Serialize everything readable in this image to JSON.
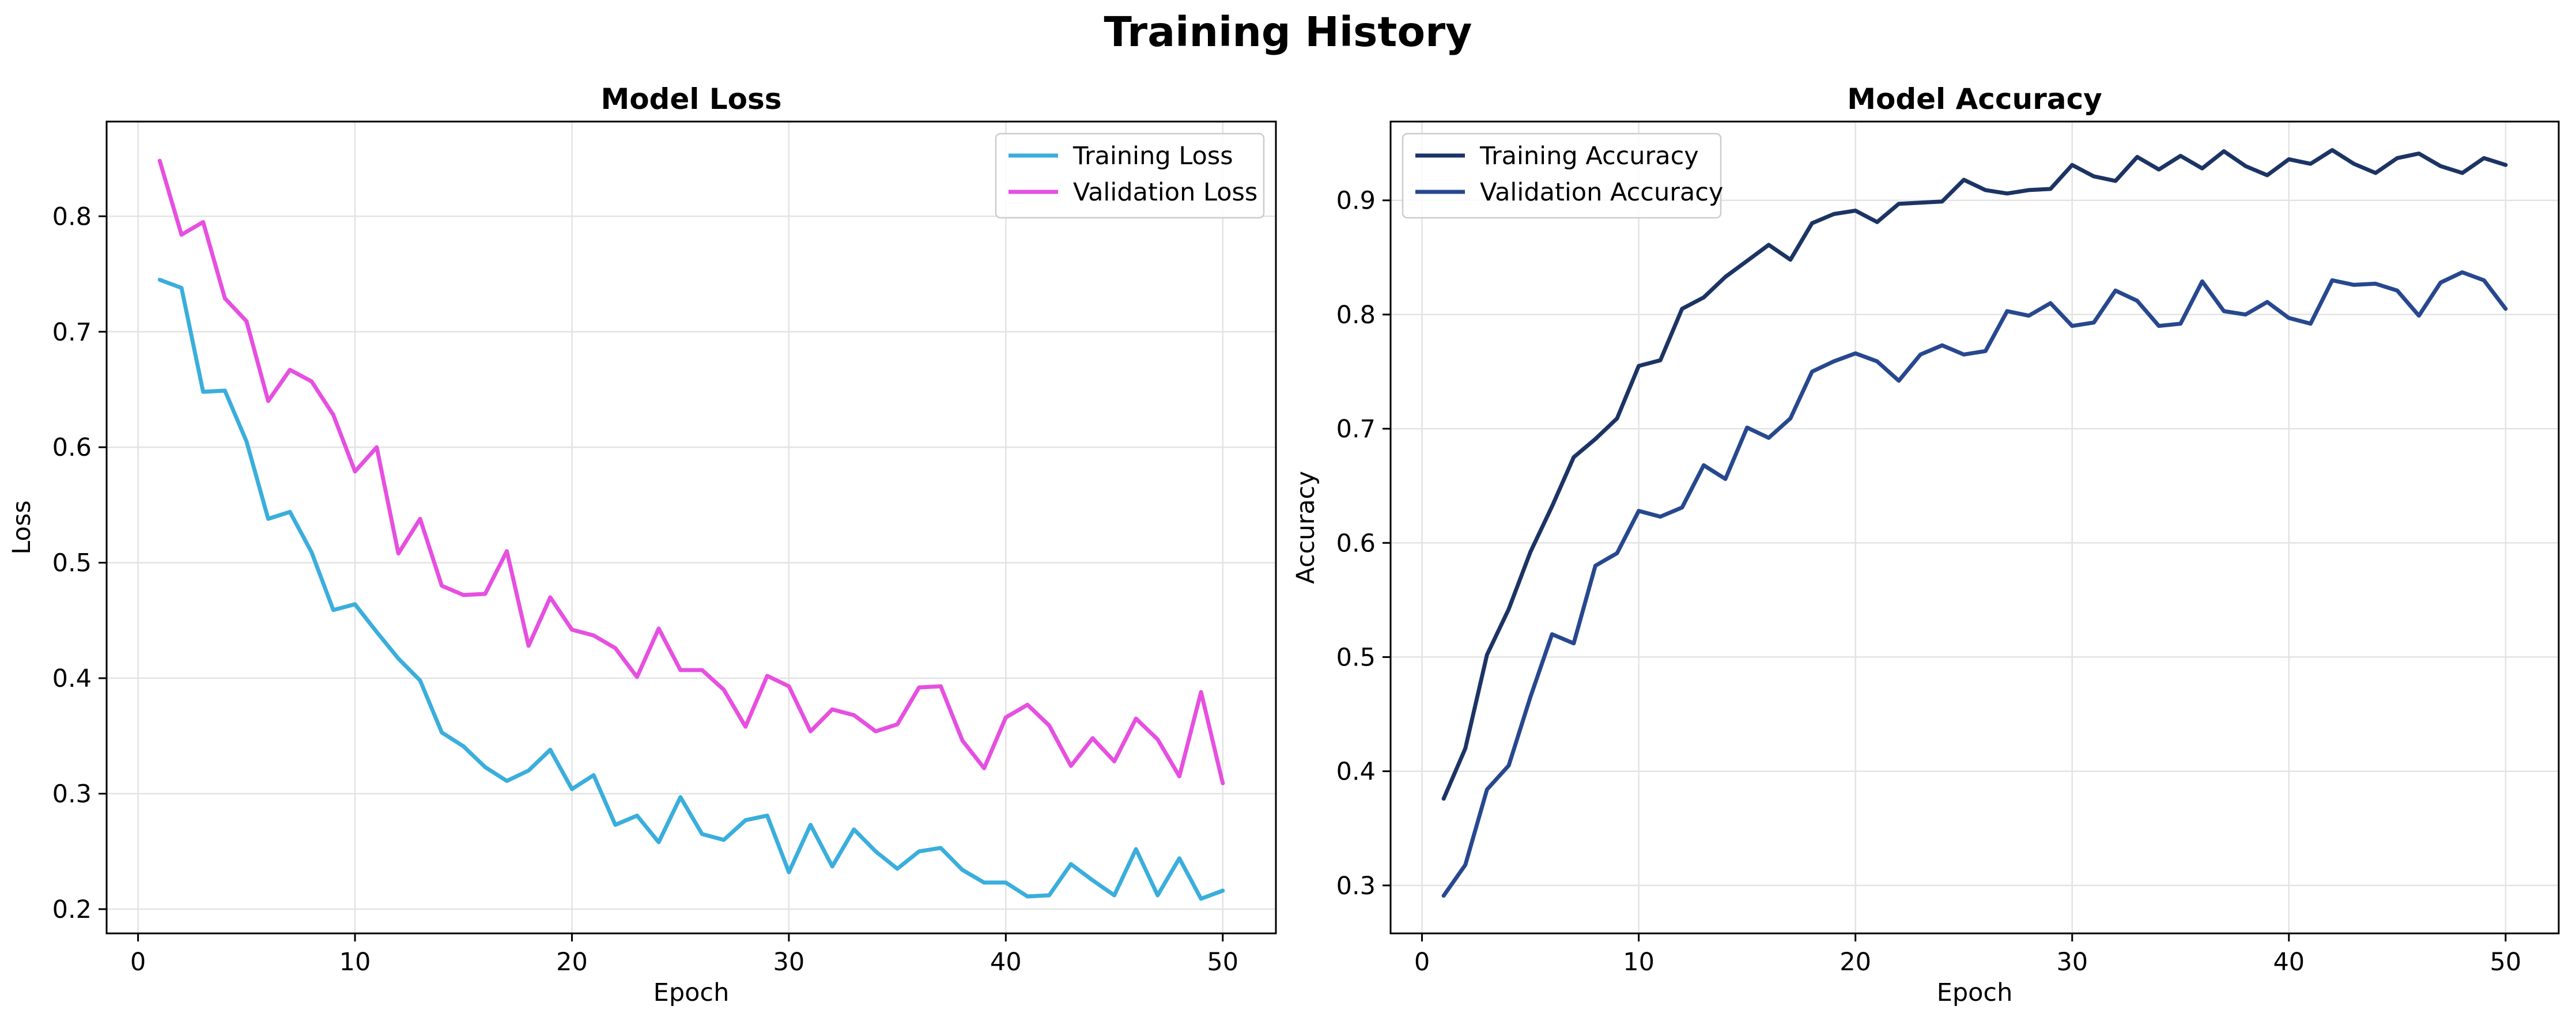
{
  "figure": {
    "title": "Training History"
  },
  "chart_data": [
    {
      "type": "line",
      "title": "Model Loss",
      "xlabel": "Epoch",
      "ylabel": "Loss",
      "xlim": [
        -1.45,
        52.45
      ],
      "ylim": [
        0.179,
        0.882
      ],
      "xticks": [
        0,
        10,
        20,
        30,
        40,
        50
      ],
      "yticks": [
        0.2,
        0.3,
        0.4,
        0.5,
        0.6,
        0.7,
        0.8
      ],
      "grid": true,
      "legend": "top-right",
      "x": [
        1,
        2,
        3,
        4,
        5,
        6,
        7,
        8,
        9,
        10,
        11,
        12,
        13,
        14,
        15,
        16,
        17,
        18,
        19,
        20,
        21,
        22,
        23,
        24,
        25,
        26,
        27,
        28,
        29,
        30,
        31,
        32,
        33,
        34,
        35,
        36,
        37,
        38,
        39,
        40,
        41,
        42,
        43,
        44,
        45,
        46,
        47,
        48,
        49,
        50
      ],
      "series": [
        {
          "name": "Training Loss",
          "color": "#3aaedc",
          "values": [
            0.745,
            0.738,
            0.648,
            0.649,
            0.605,
            0.538,
            0.544,
            0.509,
            0.459,
            0.464,
            0.44,
            0.417,
            0.398,
            0.353,
            0.341,
            0.323,
            0.311,
            0.32,
            0.338,
            0.304,
            0.316,
            0.273,
            0.281,
            0.258,
            0.297,
            0.265,
            0.26,
            0.277,
            0.281,
            0.232,
            0.273,
            0.237,
            0.269,
            0.25,
            0.235,
            0.25,
            0.253,
            0.234,
            0.223,
            0.223,
            0.211,
            0.212,
            0.239,
            0.225,
            0.212,
            0.252,
            0.212,
            0.244,
            0.209,
            0.216
          ]
        },
        {
          "name": "Validation Loss",
          "color": "#e64fe0",
          "values": [
            0.848,
            0.784,
            0.795,
            0.729,
            0.709,
            0.64,
            0.667,
            0.657,
            0.628,
            0.579,
            0.6,
            0.508,
            0.538,
            0.48,
            0.472,
            0.473,
            0.51,
            0.428,
            0.47,
            0.442,
            0.437,
            0.426,
            0.401,
            0.443,
            0.407,
            0.407,
            0.39,
            0.358,
            0.402,
            0.393,
            0.354,
            0.373,
            0.368,
            0.354,
            0.36,
            0.392,
            0.393,
            0.346,
            0.322,
            0.366,
            0.377,
            0.359,
            0.324,
            0.348,
            0.328,
            0.365,
            0.347,
            0.315,
            0.388,
            0.309
          ]
        }
      ]
    },
    {
      "type": "line",
      "title": "Model Accuracy",
      "xlabel": "Epoch",
      "ylabel": "Accuracy",
      "xlim": [
        -1.45,
        52.45
      ],
      "ylim": [
        0.258,
        0.969
      ],
      "xticks": [
        0,
        10,
        20,
        30,
        40,
        50
      ],
      "yticks": [
        0.3,
        0.4,
        0.5,
        0.6,
        0.7,
        0.8,
        0.9
      ],
      "grid": true,
      "legend": "top-left",
      "x": [
        1,
        2,
        3,
        4,
        5,
        6,
        7,
        8,
        9,
        10,
        11,
        12,
        13,
        14,
        15,
        16,
        17,
        18,
        19,
        20,
        21,
        22,
        23,
        24,
        25,
        26,
        27,
        28,
        29,
        30,
        31,
        32,
        33,
        34,
        35,
        36,
        37,
        38,
        39,
        40,
        41,
        42,
        43,
        44,
        45,
        46,
        47,
        48,
        49,
        50
      ],
      "series": [
        {
          "name": "Training Accuracy",
          "color": "#1c3464",
          "values": [
            0.376,
            0.42,
            0.502,
            0.542,
            0.592,
            0.632,
            0.675,
            0.691,
            0.709,
            0.755,
            0.76,
            0.805,
            0.815,
            0.833,
            0.847,
            0.861,
            0.848,
            0.88,
            0.888,
            0.891,
            0.881,
            0.897,
            0.898,
            0.899,
            0.918,
            0.909,
            0.906,
            0.909,
            0.91,
            0.931,
            0.921,
            0.917,
            0.938,
            0.927,
            0.939,
            0.928,
            0.943,
            0.93,
            0.922,
            0.936,
            0.932,
            0.944,
            0.932,
            0.924,
            0.937,
            0.941,
            0.93,
            0.924,
            0.937,
            0.931
          ]
        },
        {
          "name": "Validation Accuracy",
          "color": "#27488f",
          "values": [
            0.291,
            0.318,
            0.384,
            0.405,
            0.465,
            0.52,
            0.512,
            0.58,
            0.591,
            0.628,
            0.623,
            0.631,
            0.668,
            0.656,
            0.701,
            0.692,
            0.709,
            0.75,
            0.759,
            0.766,
            0.759,
            0.742,
            0.765,
            0.773,
            0.765,
            0.768,
            0.803,
            0.799,
            0.81,
            0.79,
            0.793,
            0.821,
            0.812,
            0.79,
            0.792,
            0.829,
            0.803,
            0.8,
            0.811,
            0.797,
            0.792,
            0.83,
            0.826,
            0.827,
            0.821,
            0.799,
            0.828,
            0.837,
            0.83,
            0.805
          ]
        }
      ]
    }
  ]
}
